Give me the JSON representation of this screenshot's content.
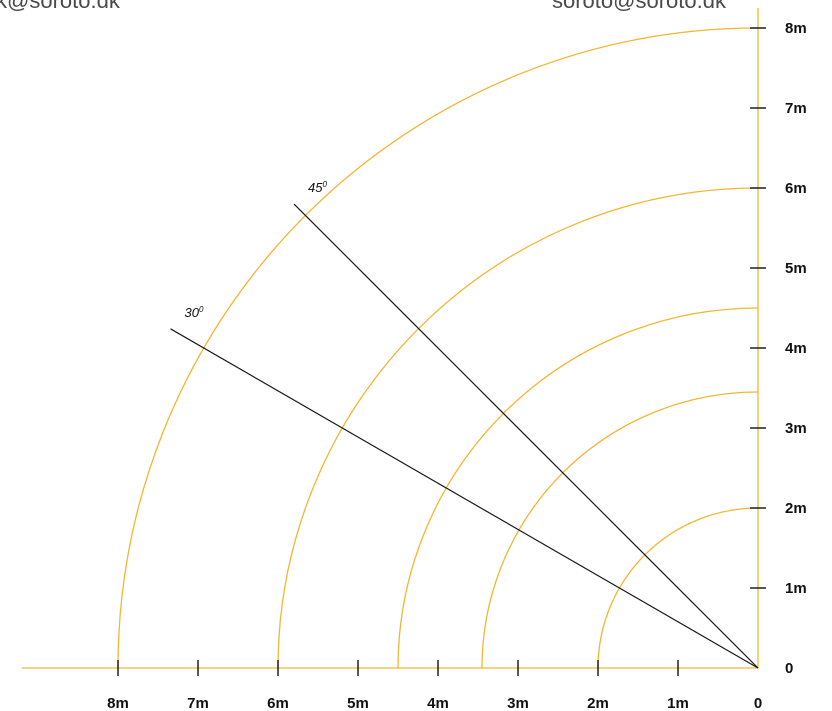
{
  "header": {
    "email_left": "k@soroto.dk",
    "email_right": "soroto@soroto.dk"
  },
  "diagram": {
    "units_suffix": "m",
    "max_range": 8,
    "x_ticks": [
      "8m",
      "7m",
      "6m",
      "5m",
      "4m",
      "3m",
      "2m",
      "1m",
      "0"
    ],
    "y_ticks": [
      "0",
      "1m",
      "2m",
      "3m",
      "4m",
      "5m",
      "6m",
      "7m",
      "8m"
    ],
    "arc_radii": [
      2,
      3.45,
      4.5,
      6,
      8
    ],
    "angle_lines": [
      {
        "label": "30",
        "sup": "0",
        "angle_deg": 30
      },
      {
        "label": "45",
        "sup": "0",
        "angle_deg": 45
      }
    ],
    "colors": {
      "arc": "#f2b632",
      "axis": "#f2b632",
      "line": "#1a1a1a",
      "tick": "#111111"
    }
  }
}
